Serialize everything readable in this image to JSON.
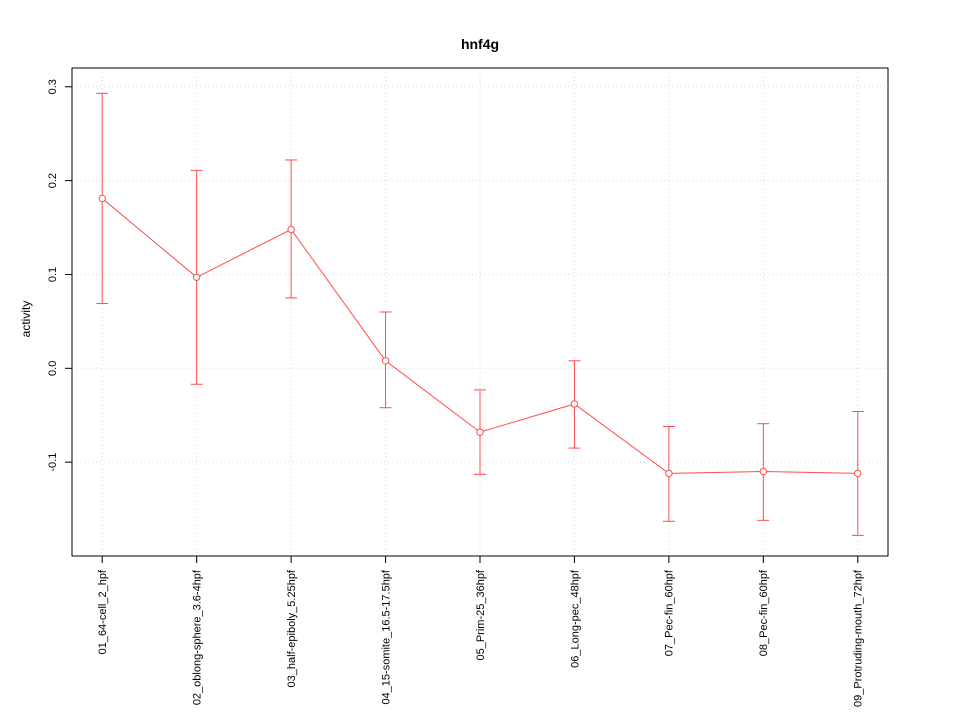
{
  "chart_data": {
    "type": "line",
    "title": "hnf4g",
    "ylabel": "activity",
    "xlabel": "",
    "categories": [
      "01_64-cell_2_hpf",
      "02_oblong-sphere_3.6-4hpf",
      "03_half-epiboly_5.25hpf",
      "04_15-somite_16.5-17.5hpf",
      "05_Prim-25_36hpf",
      "06_Long-pec_48hpf",
      "07_Pec-fin_60hpf",
      "08_Pec-fin_60hpf",
      "09_Protruding-mouth_72hpf"
    ],
    "series": [
      {
        "name": "activity",
        "values": [
          0.181,
          0.097,
          0.148,
          0.008,
          -0.068,
          -0.038,
          -0.112,
          -0.11,
          -0.112
        ],
        "error_low": [
          0.069,
          -0.017,
          0.075,
          -0.042,
          -0.113,
          -0.085,
          -0.163,
          -0.162,
          -0.178
        ],
        "error_high": [
          0.293,
          0.211,
          0.222,
          0.06,
          -0.023,
          0.008,
          -0.062,
          -0.059,
          -0.046
        ]
      }
    ],
    "yticks": [
      -0.1,
      0.0,
      0.1,
      0.2,
      0.3
    ],
    "ylim": [
      -0.2,
      0.32
    ],
    "grid": true,
    "legend_position": "none",
    "marker": "open-circle",
    "series_color": "#ff4d4d",
    "grid_color": "#d9d9d9",
    "axis_color": "#000000"
  }
}
